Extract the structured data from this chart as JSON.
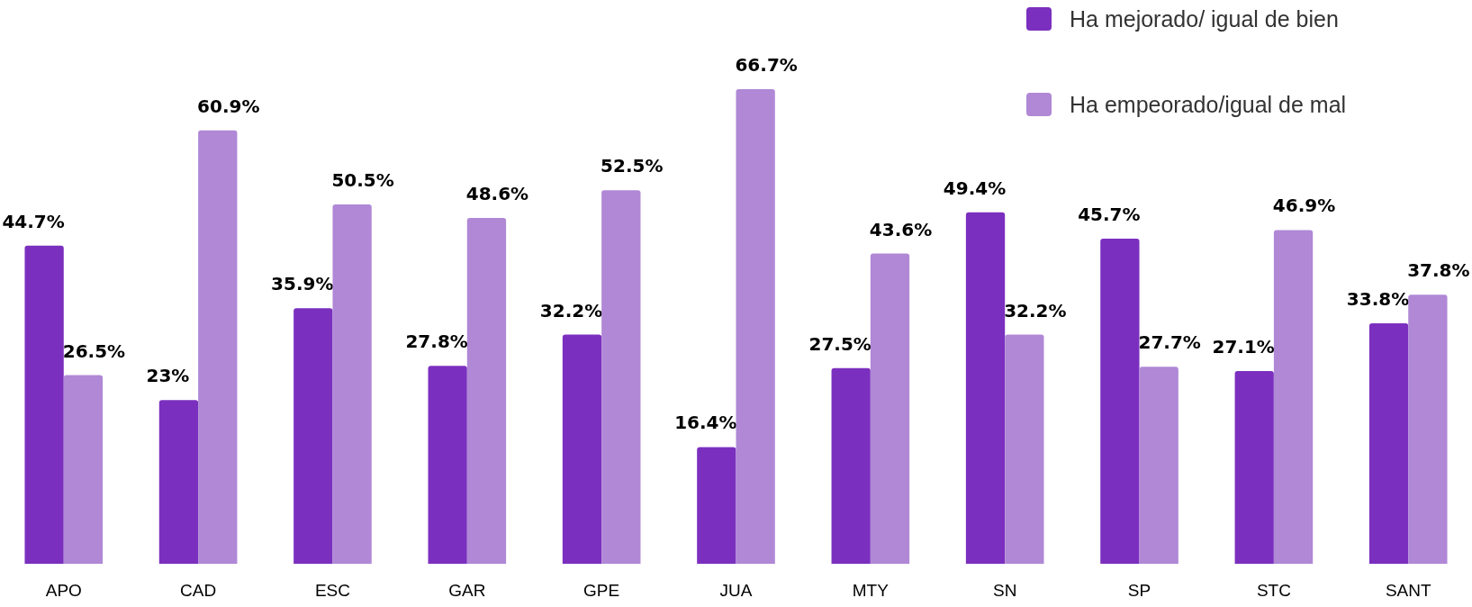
{
  "chart_data": {
    "type": "bar",
    "categories": [
      "APO",
      "CAD",
      "ESC",
      "GAR",
      "GPE",
      "JUA",
      "MTY",
      "SN",
      "SP",
      "STC",
      "SANT"
    ],
    "series": [
      {
        "name": "Ha mejorado/ igual de bien",
        "color": "#7b2fbf",
        "values": [
          44.7,
          23,
          35.9,
          27.8,
          32.2,
          16.4,
          27.5,
          49.4,
          45.7,
          27.1,
          33.8
        ],
        "value_labels": [
          "44.7%",
          "23%",
          "35.9%",
          "27.8%",
          "32.2%",
          "16.4%",
          "27.5%",
          "49.4%",
          "45.7%",
          "27.1%",
          "33.8%"
        ]
      },
      {
        "name": "Ha empeorado/igual de mal",
        "color": "#b088d6",
        "values": [
          26.5,
          60.9,
          50.5,
          48.6,
          52.5,
          66.7,
          43.6,
          32.2,
          27.7,
          46.9,
          37.8
        ],
        "value_labels": [
          "26.5%",
          "60.9%",
          "50.5%",
          "48.6%",
          "52.5%",
          "66.7%",
          "43.6%",
          "32.2%",
          "27.7%",
          "46.9%",
          "37.8%"
        ]
      }
    ],
    "legend": "top right"
  }
}
